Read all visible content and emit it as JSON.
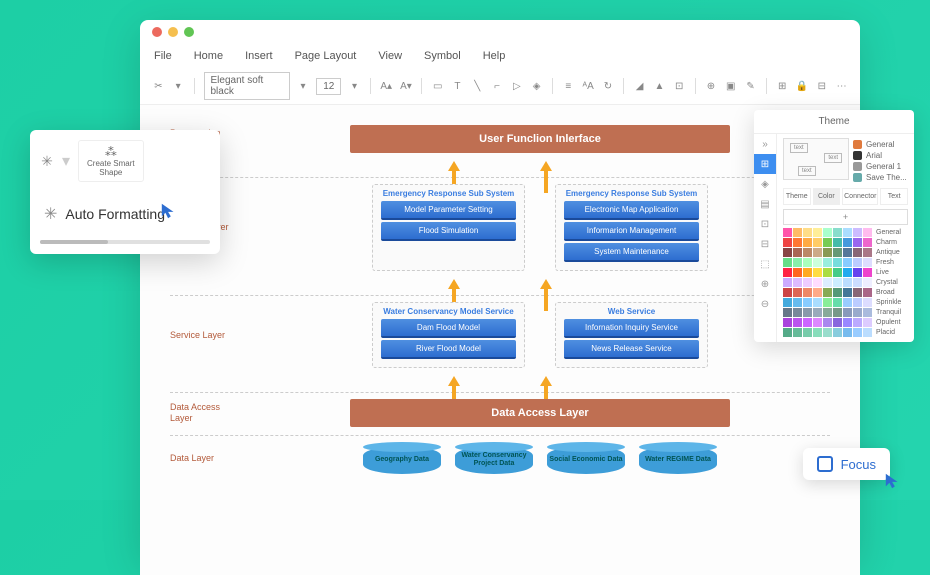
{
  "window": {
    "dots": [
      "#ec6a5e",
      "#f5bf4f",
      "#61c554"
    ]
  },
  "menu": [
    "File",
    "Home",
    "Insert",
    "Page Layout",
    "View",
    "Symbol",
    "Help"
  ],
  "toolbar": {
    "font": "Elegant soft black",
    "size": "12"
  },
  "layers": {
    "presentation": {
      "label": "Presentation\nLayer",
      "bar": "User Funclion Inlerface",
      "bar_color": "#bf6f52"
    },
    "business": {
      "label": "Business layer",
      "left": {
        "title": "Emergency Response  Sub System",
        "items": [
          "Model Parameter Setting",
          "Flood Simulation"
        ]
      },
      "right": {
        "title": "Emergency Response  Sub System",
        "items": [
          "Electronic Map Application",
          "Informarion Management",
          "System Maintenance"
        ]
      }
    },
    "service": {
      "label": "Service Layer",
      "left": {
        "title": "Water Conservancy Model Service",
        "items": [
          "Dam Flood Model",
          "River Flood Model"
        ]
      },
      "right": {
        "title": "Web Service",
        "items": [
          "Infornation Inquiry Service",
          "News Release Service"
        ]
      }
    },
    "access": {
      "label": "Data Access\nLayer",
      "bar": "Data Access Layer",
      "bar_color": "#bf6f52"
    },
    "data": {
      "label": "Data Layer",
      "cyls": [
        "Geography Data",
        "Water Conservancy Project Data",
        "Social Economic Data",
        "Water REGIME Data"
      ]
    }
  },
  "popup_left": {
    "smart": "Create Smart\nShape",
    "auto": "Auto Formatting"
  },
  "panel": {
    "title": "Theme",
    "options": [
      {
        "color": "#e07a3d",
        "label": "General"
      },
      {
        "color": "#333",
        "label": "Arial"
      },
      {
        "color": "#999",
        "label": "General 1"
      },
      {
        "color": "#6aa",
        "label": "Save The..."
      }
    ],
    "tabs": [
      "Theme",
      "Color",
      "Connector",
      "Text"
    ],
    "palettes": [
      {
        "label": "General",
        "colors": [
          "#f5a",
          "#fb6",
          "#fd8",
          "#fe9",
          "#afc",
          "#8dc",
          "#adf",
          "#cbf",
          "#fbe"
        ]
      },
      {
        "label": "Charm",
        "colors": [
          "#e44",
          "#f73",
          "#fa4",
          "#fc6",
          "#7c5",
          "#4ba",
          "#49d",
          "#96e",
          "#e6c"
        ]
      },
      {
        "label": "Antique",
        "colors": [
          "#844",
          "#a65",
          "#b86",
          "#ca8",
          "#895",
          "#697",
          "#579",
          "#867",
          "#a78"
        ]
      },
      {
        "label": "Fresh",
        "colors": [
          "#6d8",
          "#8ea",
          "#afb",
          "#cfd",
          "#9ed",
          "#7dd",
          "#8cf",
          "#bcf",
          "#ddf"
        ]
      },
      {
        "label": "Live",
        "colors": [
          "#f24",
          "#f62",
          "#fa2",
          "#fd4",
          "#ad4",
          "#4c8",
          "#2ae",
          "#64e",
          "#e4c"
        ]
      },
      {
        "label": "Crystal",
        "colors": [
          "#caf",
          "#dbf",
          "#ecf",
          "#fdf",
          "#def",
          "#cef",
          "#bdf",
          "#cdf",
          "#eef"
        ]
      },
      {
        "label": "Broad",
        "colors": [
          "#c44",
          "#d65",
          "#e86",
          "#fa8",
          "#8a5",
          "#597",
          "#479",
          "#867",
          "#a68"
        ]
      },
      {
        "label": "Sprinkle",
        "colors": [
          "#4ad",
          "#6be",
          "#8cf",
          "#adf",
          "#8e9",
          "#6da",
          "#9cf",
          "#bcf",
          "#ddf"
        ]
      },
      {
        "label": "Tranquil",
        "colors": [
          "#678",
          "#789",
          "#89a",
          "#9ab",
          "#8a9",
          "#798",
          "#89b",
          "#9ac",
          "#abd"
        ]
      },
      {
        "label": "Opulent",
        "colors": [
          "#a4d",
          "#b5e",
          "#c6f",
          "#d8f",
          "#a8e",
          "#86d",
          "#98f",
          "#baf",
          "#dcf"
        ]
      },
      {
        "label": "Placid",
        "colors": [
          "#5a8",
          "#6b9",
          "#7ca",
          "#8db",
          "#9dc",
          "#8cd",
          "#7be",
          "#9cf",
          "#bdf"
        ]
      }
    ]
  },
  "focus": {
    "label": "Focus"
  }
}
